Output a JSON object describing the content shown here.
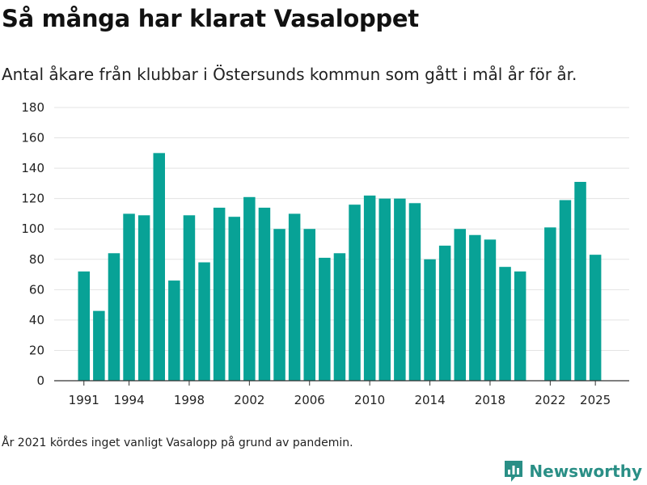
{
  "title": "Så många har klarat Vasaloppet",
  "subtitle": "Antal åkare från klubbar i Östersunds kommun som gått i mål år för år.",
  "footnote": "År 2021 kördes inget vanligt Vasalopp på grund av pandemin.",
  "brand": {
    "name": "Newsworthy",
    "icon": "newsworthy-logo-icon"
  },
  "colors": {
    "bar": "#08a296",
    "grid": "#e3e3e3",
    "axis": "#333333",
    "text": "#222222",
    "brand": "#2a8f86"
  },
  "chart_data": {
    "type": "bar",
    "title": "Så många har klarat Vasaloppet",
    "xlabel": "",
    "ylabel": "",
    "ylim": [
      0,
      180
    ],
    "yticks": [
      0,
      20,
      40,
      60,
      80,
      100,
      120,
      140,
      160,
      180
    ],
    "xticks": [
      1991,
      1994,
      1998,
      2002,
      2006,
      2010,
      2014,
      2018,
      2022,
      2025
    ],
    "categories": [
      1991,
      1992,
      1993,
      1994,
      1995,
      1996,
      1997,
      1998,
      1999,
      2000,
      2001,
      2002,
      2003,
      2004,
      2005,
      2006,
      2007,
      2008,
      2009,
      2010,
      2011,
      2012,
      2013,
      2014,
      2015,
      2016,
      2017,
      2018,
      2019,
      2020,
      2021,
      2022,
      2023,
      2024,
      2025
    ],
    "values": [
      72,
      46,
      84,
      110,
      109,
      150,
      66,
      109,
      78,
      114,
      108,
      121,
      114,
      100,
      110,
      100,
      81,
      84,
      116,
      122,
      120,
      120,
      117,
      80,
      89,
      100,
      96,
      93,
      75,
      72,
      null,
      101,
      119,
      131,
      83
    ],
    "grid": true
  }
}
